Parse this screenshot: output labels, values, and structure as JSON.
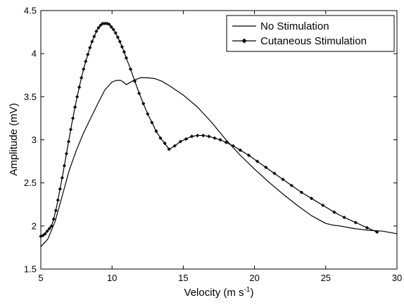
{
  "chart_data": {
    "type": "line",
    "xlabel": "Velocity (m s",
    "xlabel_superscript": "-1",
    "xlabel_suffix": ")",
    "ylabel": "Amplitude (mV)",
    "xlim": [
      5,
      30
    ],
    "ylim": [
      1.5,
      4.5
    ],
    "x_ticks": [
      "5",
      "10",
      "15",
      "20",
      "25",
      "30"
    ],
    "y_ticks": [
      "1.5",
      "2",
      "2.5",
      "3",
      "3.5",
      "4",
      "4.5"
    ],
    "grid": false,
    "legend_position": "top-right",
    "series": [
      {
        "name": "No Stimulation",
        "color": "#000000",
        "marker": "none",
        "x": [
          5.0,
          5.5,
          6.0,
          6.5,
          7.0,
          7.5,
          8.0,
          8.5,
          9.0,
          9.5,
          10.0,
          10.3,
          10.6,
          10.8,
          11.0,
          11.2,
          11.5,
          12.0,
          12.5,
          13.0,
          13.5,
          14.0,
          15.0,
          16.0,
          17.0,
          18.0,
          19.0,
          20.0,
          21.0,
          22.0,
          23.0,
          24.0,
          25.0,
          25.5,
          26.0,
          27.0,
          28.0,
          29.0,
          30.0
        ],
        "y": [
          1.76,
          1.85,
          2.05,
          2.35,
          2.65,
          2.88,
          3.08,
          3.25,
          3.42,
          3.58,
          3.67,
          3.69,
          3.69,
          3.67,
          3.64,
          3.66,
          3.69,
          3.72,
          3.72,
          3.71,
          3.68,
          3.63,
          3.52,
          3.38,
          3.2,
          3.0,
          2.82,
          2.66,
          2.51,
          2.37,
          2.24,
          2.12,
          2.03,
          2.01,
          2.0,
          1.97,
          1.95,
          1.94,
          1.91
        ]
      },
      {
        "name": "Cutaneous Stimulation",
        "color": "#000000",
        "marker": "diamond",
        "x": [
          5.0,
          5.15,
          5.3,
          5.45,
          5.6,
          5.75,
          5.9,
          6.05,
          6.2,
          6.35,
          6.5,
          6.65,
          6.8,
          6.95,
          7.1,
          7.25,
          7.4,
          7.55,
          7.7,
          7.85,
          8.0,
          8.15,
          8.3,
          8.45,
          8.6,
          8.75,
          8.9,
          9.05,
          9.2,
          9.35,
          9.5,
          9.65,
          9.8,
          9.95,
          10.1,
          10.25,
          10.4,
          10.55,
          10.7,
          10.85,
          11.0,
          11.3,
          11.6,
          11.9,
          12.2,
          12.5,
          12.8,
          13.1,
          13.4,
          13.7,
          14.0,
          14.4,
          14.8,
          15.2,
          15.6,
          16.0,
          16.4,
          16.8,
          17.2,
          17.6,
          18.0,
          18.5,
          19.0,
          19.6,
          20.2,
          20.8,
          21.4,
          22.0,
          22.6,
          23.3,
          24.0,
          24.8,
          25.6,
          26.3,
          27.1,
          27.9,
          28.6
        ],
        "y": [
          1.88,
          1.89,
          1.91,
          1.94,
          1.97,
          2.0,
          2.08,
          2.18,
          2.3,
          2.43,
          2.56,
          2.7,
          2.84,
          2.98,
          3.12,
          3.25,
          3.38,
          3.5,
          3.61,
          3.72,
          3.82,
          3.91,
          3.99,
          4.07,
          4.14,
          4.2,
          4.26,
          4.3,
          4.33,
          4.35,
          4.35,
          4.35,
          4.34,
          4.31,
          4.28,
          4.24,
          4.19,
          4.14,
          4.08,
          4.02,
          3.95,
          3.82,
          3.68,
          3.54,
          3.42,
          3.3,
          3.2,
          3.1,
          3.02,
          2.96,
          2.89,
          2.93,
          2.98,
          3.01,
          3.04,
          3.05,
          3.05,
          3.04,
          3.02,
          3.0,
          2.97,
          2.93,
          2.88,
          2.82,
          2.75,
          2.68,
          2.61,
          2.54,
          2.47,
          2.39,
          2.32,
          2.24,
          2.16,
          2.1,
          2.04,
          1.98,
          1.93
        ]
      }
    ]
  }
}
